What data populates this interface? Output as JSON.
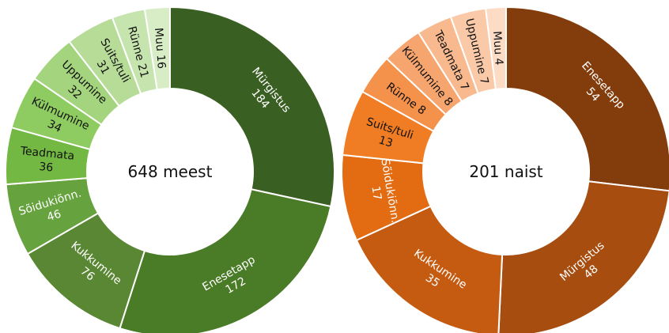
{
  "chart_data": [
    {
      "type": "pie",
      "variant": "donut",
      "center_label": "648 meest",
      "slices": [
        {
          "label": "Mürgistus",
          "value": 184,
          "color": "#3A5F22",
          "text_color": "#ffffff"
        },
        {
          "label": "Enesetapp",
          "value": 172,
          "color": "#4A7B26",
          "text_color": "#ffffff"
        },
        {
          "label": "Kukkumine",
          "value": 76,
          "color": "#5A8733",
          "text_color": "#ffffff"
        },
        {
          "label": "Sõidukiõnn.",
          "value": 46,
          "color": "#66A33F",
          "text_color": "#ffffff"
        },
        {
          "label": "Teadmata",
          "value": 36,
          "color": "#72B842",
          "text_color": "#111111"
        },
        {
          "label": "Külmumine",
          "value": 34,
          "color": "#8ECB60",
          "text_color": "#111111"
        },
        {
          "label": "Uppumine",
          "value": 32,
          "color": "#A4D47E",
          "text_color": "#111111"
        },
        {
          "label": "Suits/tuli",
          "value": 31,
          "color": "#B6DC98",
          "text_color": "#111111"
        },
        {
          "label": "Rünne",
          "value": 21,
          "color": "#C6E4AD",
          "text_color": "#111111"
        },
        {
          "label": "Muu",
          "value": 16,
          "color": "#D8EDC6",
          "text_color": "#111111"
        }
      ]
    },
    {
      "type": "pie",
      "variant": "donut",
      "center_label": "201 naist",
      "slices": [
        {
          "label": "Enesetapp",
          "value": 54,
          "color": "#833C0B",
          "text_color": "#ffffff"
        },
        {
          "label": "Mürgistus",
          "value": 48,
          "color": "#A64D0F",
          "text_color": "#ffffff"
        },
        {
          "label": "Kukkumine",
          "value": 35,
          "color": "#C55A11",
          "text_color": "#ffffff"
        },
        {
          "label": "Sõidukiõnn.",
          "value": 17,
          "color": "#E36C12",
          "text_color": "#ffffff"
        },
        {
          "label": "Suits/tuli",
          "value": 13,
          "color": "#F07C23",
          "text_color": "#111111"
        },
        {
          "label": "Rünne",
          "value": 8,
          "color": "#F4914A",
          "text_color": "#111111"
        },
        {
          "label": "Külmumine",
          "value": 8,
          "color": "#F6A56E",
          "text_color": "#111111"
        },
        {
          "label": "Teadmata",
          "value": 7,
          "color": "#F8B98F",
          "text_color": "#111111"
        },
        {
          "label": "Uppumine",
          "value": 7,
          "color": "#FAC9A8",
          "text_color": "#111111"
        },
        {
          "label": "Muu",
          "value": 4,
          "color": "#FCDCC5",
          "text_color": "#111111"
        }
      ]
    }
  ]
}
